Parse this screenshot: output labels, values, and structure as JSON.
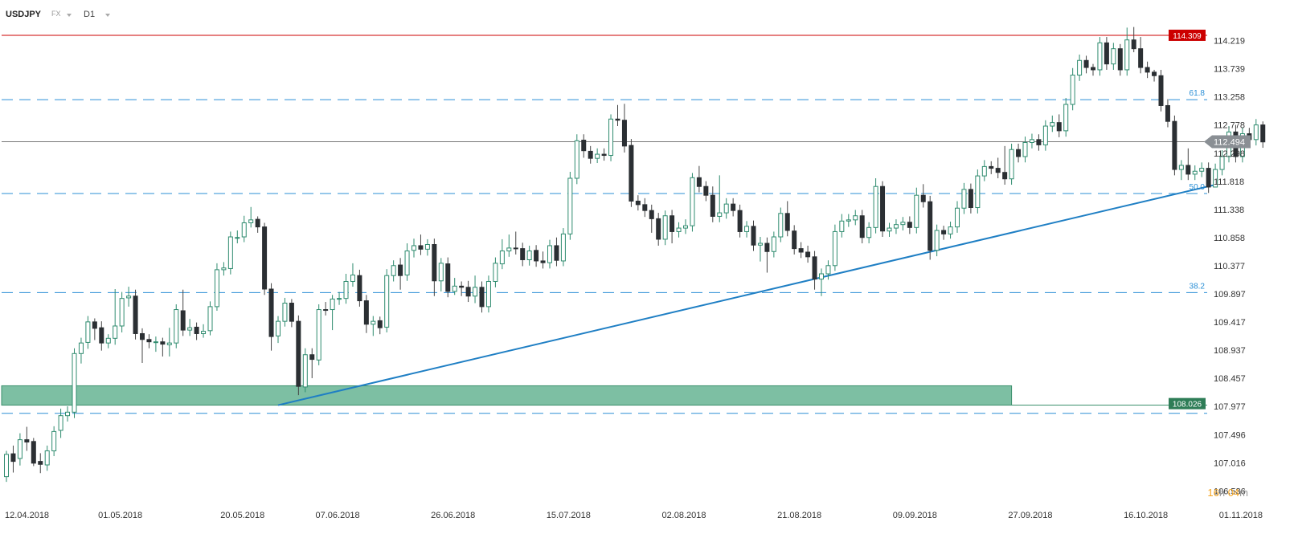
{
  "header": {
    "symbol": "USDJPY",
    "instrument_type": "FX",
    "timeframe": "D1"
  },
  "countdown": {
    "hours": "16",
    "hours_unit": "h",
    "minutes": "04",
    "minutes_unit": "m"
  },
  "colors": {
    "bull_body": "#ffffff",
    "bull_border": "#2e8b6e",
    "bear_body": "#2b2f33",
    "wick": "#444444",
    "resistance": "#cc0000",
    "fib_line": "#2b8fd6",
    "trendline": "#1f7fc4",
    "zone_fill": "#7dbfa3",
    "zone_border": "#3c8f6c",
    "current_price": "#777777",
    "timer": "#f5a623"
  },
  "chart_data": {
    "type": "candlestick",
    "ylim": [
      106.35,
      114.5
    ],
    "y_ticks": [
      "114.219",
      "113.739",
      "113.258",
      "112.778",
      "112.298",
      "111.818",
      "111.338",
      "110.858",
      "110.377",
      "109.897",
      "109.417",
      "108.937",
      "108.457",
      "107.977",
      "107.496",
      "107.016",
      "106.536"
    ],
    "x_ticks": [
      {
        "label": "12.04.2018",
        "index": 0
      },
      {
        "label": "01.05.2018",
        "index": 17
      },
      {
        "label": "20.05.2018",
        "index": 35
      },
      {
        "label": "07.06.2018",
        "index": 49
      },
      {
        "label": "26.06.2018",
        "index": 66
      },
      {
        "label": "15.07.2018",
        "index": 83
      },
      {
        "label": "02.08.2018",
        "index": 100
      },
      {
        "label": "21.08.2018",
        "index": 117
      },
      {
        "label": "09.09.2018",
        "index": 134
      },
      {
        "label": "27.09.2018",
        "index": 151
      },
      {
        "label": "16.10.2018",
        "index": 168
      },
      {
        "label": "01.11.2018",
        "index": 182
      }
    ],
    "levels": [
      {
        "name": "resistance",
        "value": 114.309,
        "label": "114.309",
        "style": "solid"
      },
      {
        "name": "current",
        "value": 112.494,
        "label": "112.494",
        "style": "solid"
      }
    ],
    "fib_levels": [
      {
        "label": "61.8",
        "value": 113.21
      },
      {
        "label": "50.0",
        "value": 111.61
      },
      {
        "label": "38.2",
        "value": 109.92
      },
      {
        "label": "",
        "value": 107.86
      }
    ],
    "support_zone": {
      "low": 108.0,
      "high": 108.33,
      "label": "108.026",
      "label_value": 108.026,
      "end_index": 148
    },
    "trendline": {
      "from": {
        "index": 40,
        "value": 108.0
      },
      "to": {
        "index": 178,
        "value": 111.76
      }
    },
    "candles": [
      [
        106.78,
        107.16,
        106.69,
        107.22
      ],
      [
        107.17,
        107.04,
        106.85,
        107.31
      ],
      [
        107.09,
        107.41,
        106.97,
        107.52
      ],
      [
        107.41,
        107.37,
        107.22,
        107.63
      ],
      [
        107.38,
        107.01,
        106.96,
        107.44
      ],
      [
        107.04,
        106.99,
        106.84,
        107.18
      ],
      [
        106.98,
        107.22,
        106.88,
        107.31
      ],
      [
        107.22,
        107.55,
        107.13,
        107.64
      ],
      [
        107.57,
        107.82,
        107.44,
        107.94
      ],
      [
        107.82,
        107.88,
        107.72,
        107.98
      ],
      [
        107.88,
        108.88,
        107.78,
        108.97
      ],
      [
        108.88,
        109.06,
        108.71,
        109.15
      ],
      [
        109.07,
        109.42,
        108.96,
        109.52
      ],
      [
        109.42,
        109.31,
        109.11,
        109.48
      ],
      [
        109.32,
        109.06,
        108.93,
        109.43
      ],
      [
        109.06,
        109.14,
        108.97,
        109.21
      ],
      [
        109.14,
        109.35,
        109.03,
        109.98
      ],
      [
        109.35,
        109.82,
        109.24,
        109.93
      ],
      [
        109.83,
        109.86,
        109.68,
        110.02
      ],
      [
        109.86,
        109.22,
        109.12,
        109.97
      ],
      [
        109.22,
        109.12,
        108.72,
        109.31
      ],
      [
        109.12,
        109.08,
        108.97,
        109.21
      ],
      [
        109.08,
        109.08,
        108.91,
        109.17
      ],
      [
        109.08,
        109.04,
        108.83,
        109.15
      ],
      [
        109.03,
        109.06,
        108.83,
        109.32
      ],
      [
        109.06,
        109.63,
        108.97,
        109.72
      ],
      [
        109.61,
        109.28,
        109.18,
        109.97
      ],
      [
        109.28,
        109.32,
        109.18,
        109.47
      ],
      [
        109.33,
        109.22,
        109.11,
        109.41
      ],
      [
        109.22,
        109.26,
        109.15,
        109.38
      ],
      [
        109.27,
        109.68,
        109.19,
        109.77
      ],
      [
        109.68,
        110.31,
        109.61,
        110.42
      ],
      [
        110.31,
        110.34,
        110.21,
        110.44
      ],
      [
        110.33,
        110.87,
        110.23,
        110.96
      ],
      [
        110.86,
        110.86,
        110.76,
        110.98
      ],
      [
        110.87,
        111.11,
        110.78,
        111.23
      ],
      [
        111.11,
        111.16,
        111.03,
        111.38
      ],
      [
        111.17,
        111.04,
        110.94,
        111.22
      ],
      [
        111.04,
        109.98,
        109.88,
        111.11
      ],
      [
        109.98,
        109.17,
        108.93,
        110.08
      ],
      [
        109.18,
        109.43,
        109.06,
        109.52
      ],
      [
        109.43,
        109.74,
        109.34,
        109.83
      ],
      [
        109.74,
        109.43,
        109.33,
        109.81
      ],
      [
        109.43,
        108.32,
        108.17,
        109.53
      ],
      [
        108.31,
        108.86,
        108.22,
        108.97
      ],
      [
        108.86,
        108.78,
        108.46,
        108.97
      ],
      [
        108.77,
        109.63,
        108.68,
        109.72
      ],
      [
        109.63,
        109.62,
        109.53,
        109.76
      ],
      [
        109.63,
        109.81,
        109.28,
        109.88
      ],
      [
        109.81,
        109.82,
        109.71,
        109.93
      ],
      [
        109.82,
        110.11,
        109.73,
        110.24
      ],
      [
        110.11,
        110.22,
        110.02,
        110.42
      ],
      [
        110.21,
        109.78,
        109.68,
        110.31
      ],
      [
        109.78,
        109.38,
        109.23,
        109.88
      ],
      [
        109.38,
        109.43,
        109.18,
        109.52
      ],
      [
        109.44,
        109.32,
        109.21,
        109.51
      ],
      [
        109.33,
        110.21,
        109.24,
        110.32
      ],
      [
        110.21,
        110.38,
        110.11,
        110.47
      ],
      [
        110.39,
        110.21,
        109.97,
        110.51
      ],
      [
        110.22,
        110.63,
        110.12,
        110.76
      ],
      [
        110.64,
        110.72,
        110.52,
        110.84
      ],
      [
        110.72,
        110.66,
        110.56,
        110.91
      ],
      [
        110.66,
        110.74,
        110.55,
        110.83
      ],
      [
        110.74,
        110.12,
        109.86,
        110.84
      ],
      [
        110.12,
        110.42,
        109.94,
        110.51
      ],
      [
        110.41,
        109.94,
        109.84,
        110.52
      ],
      [
        109.94,
        110.03,
        109.88,
        110.17
      ],
      [
        110.03,
        110.01,
        109.86,
        110.11
      ],
      [
        110.01,
        109.86,
        109.76,
        110.12
      ],
      [
        109.86,
        110.01,
        109.74,
        110.21
      ],
      [
        110.01,
        109.68,
        109.58,
        110.11
      ],
      [
        109.68,
        110.11,
        109.58,
        110.21
      ],
      [
        110.11,
        110.42,
        110.01,
        110.52
      ],
      [
        110.41,
        110.63,
        110.32,
        110.83
      ],
      [
        110.63,
        110.68,
        110.53,
        110.91
      ],
      [
        110.68,
        110.67,
        110.57,
        110.96
      ],
      [
        110.67,
        110.48,
        110.37,
        110.77
      ],
      [
        110.48,
        110.63,
        110.38,
        110.72
      ],
      [
        110.64,
        110.46,
        110.36,
        110.73
      ],
      [
        110.46,
        110.43,
        110.33,
        110.62
      ],
      [
        110.43,
        110.72,
        110.33,
        110.82
      ],
      [
        110.72,
        110.47,
        110.37,
        110.86
      ],
      [
        110.46,
        110.92,
        110.37,
        111.02
      ],
      [
        110.92,
        111.87,
        110.82,
        111.98
      ],
      [
        111.87,
        112.51,
        111.77,
        112.62
      ],
      [
        112.52,
        112.34,
        112.22,
        112.62
      ],
      [
        112.33,
        112.21,
        112.12,
        112.42
      ],
      [
        112.21,
        112.28,
        112.13,
        112.38
      ],
      [
        112.28,
        112.26,
        112.17,
        112.38
      ],
      [
        112.26,
        112.88,
        112.16,
        112.96
      ],
      [
        112.88,
        112.86,
        112.76,
        113.12
      ],
      [
        112.86,
        112.42,
        112.31,
        113.14
      ],
      [
        112.43,
        111.48,
        111.38,
        112.54
      ],
      [
        111.48,
        111.42,
        111.32,
        111.58
      ],
      [
        111.42,
        111.32,
        111.21,
        111.53
      ],
      [
        111.32,
        111.18,
        110.94,
        111.42
      ],
      [
        111.18,
        110.83,
        110.72,
        111.28
      ],
      [
        110.83,
        111.23,
        110.73,
        111.32
      ],
      [
        111.23,
        110.96,
        110.76,
        111.33
      ],
      [
        110.96,
        111.02,
        110.86,
        111.12
      ],
      [
        111.02,
        111.06,
        110.92,
        111.17
      ],
      [
        111.06,
        111.88,
        110.96,
        111.96
      ],
      [
        111.88,
        111.73,
        111.63,
        112.08
      ],
      [
        111.73,
        111.58,
        111.48,
        111.82
      ],
      [
        111.58,
        111.22,
        111.12,
        111.73
      ],
      [
        111.22,
        111.28,
        111.12,
        111.92
      ],
      [
        111.28,
        111.43,
        111.18,
        111.53
      ],
      [
        111.43,
        111.32,
        111.22,
        111.53
      ],
      [
        111.32,
        110.96,
        110.86,
        111.42
      ],
      [
        110.96,
        111.05,
        110.86,
        111.14
      ],
      [
        111.05,
        110.73,
        110.63,
        111.15
      ],
      [
        110.73,
        110.76,
        110.45,
        110.87
      ],
      [
        110.76,
        110.62,
        110.26,
        110.86
      ],
      [
        110.62,
        110.87,
        110.52,
        110.96
      ],
      [
        110.87,
        111.27,
        110.78,
        111.37
      ],
      [
        111.27,
        110.98,
        110.88,
        111.48
      ],
      [
        110.97,
        110.67,
        110.57,
        111.07
      ],
      [
        110.67,
        110.61,
        110.51,
        110.78
      ],
      [
        110.61,
        110.53,
        110.43,
        110.72
      ],
      [
        110.53,
        110.15,
        109.97,
        110.63
      ],
      [
        110.15,
        110.24,
        109.86,
        110.33
      ],
      [
        110.24,
        110.38,
        110.14,
        110.47
      ],
      [
        110.38,
        110.96,
        110.29,
        111.08
      ],
      [
        110.96,
        111.14,
        110.86,
        111.26
      ],
      [
        111.14,
        111.16,
        111.04,
        111.26
      ],
      [
        111.16,
        111.23,
        111.07,
        111.33
      ],
      [
        111.23,
        110.86,
        110.76,
        111.33
      ],
      [
        110.86,
        111.03,
        110.76,
        111.12
      ],
      [
        111.03,
        111.73,
        110.93,
        111.87
      ],
      [
        111.73,
        110.97,
        110.87,
        111.82
      ],
      [
        110.97,
        111.02,
        110.87,
        111.11
      ],
      [
        111.02,
        111.08,
        110.92,
        111.17
      ],
      [
        111.08,
        111.12,
        110.98,
        111.21
      ],
      [
        111.12,
        111.03,
        110.92,
        111.22
      ],
      [
        111.03,
        111.58,
        110.93,
        111.71
      ],
      [
        111.58,
        111.47,
        111.37,
        111.77
      ],
      [
        111.47,
        110.64,
        110.48,
        111.57
      ],
      [
        110.64,
        110.98,
        110.54,
        111.08
      ],
      [
        110.98,
        110.92,
        110.82,
        111.06
      ],
      [
        110.92,
        111.04,
        110.84,
        111.13
      ],
      [
        111.04,
        111.36,
        110.94,
        111.48
      ],
      [
        111.36,
        111.68,
        111.26,
        111.79
      ],
      [
        111.68,
        111.37,
        111.27,
        111.78
      ],
      [
        111.37,
        111.91,
        111.27,
        112.02
      ],
      [
        111.91,
        112.07,
        111.82,
        112.18
      ],
      [
        112.07,
        112.04,
        111.94,
        112.16
      ],
      [
        112.04,
        111.97,
        111.87,
        112.22
      ],
      [
        111.97,
        111.86,
        111.76,
        112.42
      ],
      [
        111.86,
        112.36,
        111.76,
        112.46
      ],
      [
        112.36,
        112.24,
        112.14,
        112.46
      ],
      [
        112.24,
        112.48,
        112.14,
        112.58
      ],
      [
        112.48,
        112.53,
        112.38,
        112.63
      ],
      [
        112.53,
        112.44,
        112.34,
        112.62
      ],
      [
        112.44,
        112.76,
        112.34,
        112.86
      ],
      [
        112.76,
        112.82,
        112.66,
        112.94
      ],
      [
        112.82,
        112.68,
        112.57,
        112.96
      ],
      [
        112.68,
        113.13,
        112.58,
        113.24
      ],
      [
        113.13,
        113.63,
        113.03,
        113.75
      ],
      [
        113.63,
        113.88,
        113.53,
        113.98
      ],
      [
        113.88,
        113.76,
        113.66,
        113.96
      ],
      [
        113.76,
        113.72,
        113.62,
        113.82
      ],
      [
        113.72,
        114.18,
        113.62,
        114.28
      ],
      [
        114.18,
        113.82,
        113.72,
        114.28
      ],
      [
        113.82,
        114.08,
        113.72,
        114.18
      ],
      [
        114.08,
        113.72,
        113.62,
        114.16
      ],
      [
        113.72,
        114.23,
        113.62,
        114.44
      ],
      [
        114.23,
        114.08,
        114.02,
        114.45
      ],
      [
        114.08,
        113.76,
        113.66,
        114.28
      ],
      [
        113.76,
        113.68,
        113.58,
        113.86
      ],
      [
        113.68,
        113.62,
        113.52,
        113.72
      ],
      [
        113.62,
        113.11,
        113.01,
        113.72
      ],
      [
        113.11,
        112.84,
        112.74,
        113.22
      ],
      [
        112.84,
        112.02,
        111.92,
        112.94
      ],
      [
        112.02,
        112.09,
        111.84,
        112.18
      ],
      [
        112.09,
        111.94,
        111.84,
        112.38
      ],
      [
        111.94,
        111.99,
        111.84,
        112.09
      ],
      [
        111.99,
        112.04,
        111.89,
        112.14
      ],
      [
        112.04,
        111.72,
        111.62,
        112.14
      ],
      [
        111.72,
        112.02,
        111.72,
        112.12
      ],
      [
        112.02,
        112.24,
        111.92,
        112.35
      ],
      [
        112.24,
        112.66,
        112.14,
        112.76
      ],
      [
        112.66,
        112.24,
        112.14,
        112.78
      ],
      [
        112.24,
        112.63,
        112.14,
        112.74
      ],
      [
        112.63,
        112.53,
        112.43,
        112.73
      ],
      [
        112.53,
        112.78,
        112.43,
        112.88
      ],
      [
        112.78,
        112.49,
        112.39,
        112.84
      ]
    ]
  }
}
